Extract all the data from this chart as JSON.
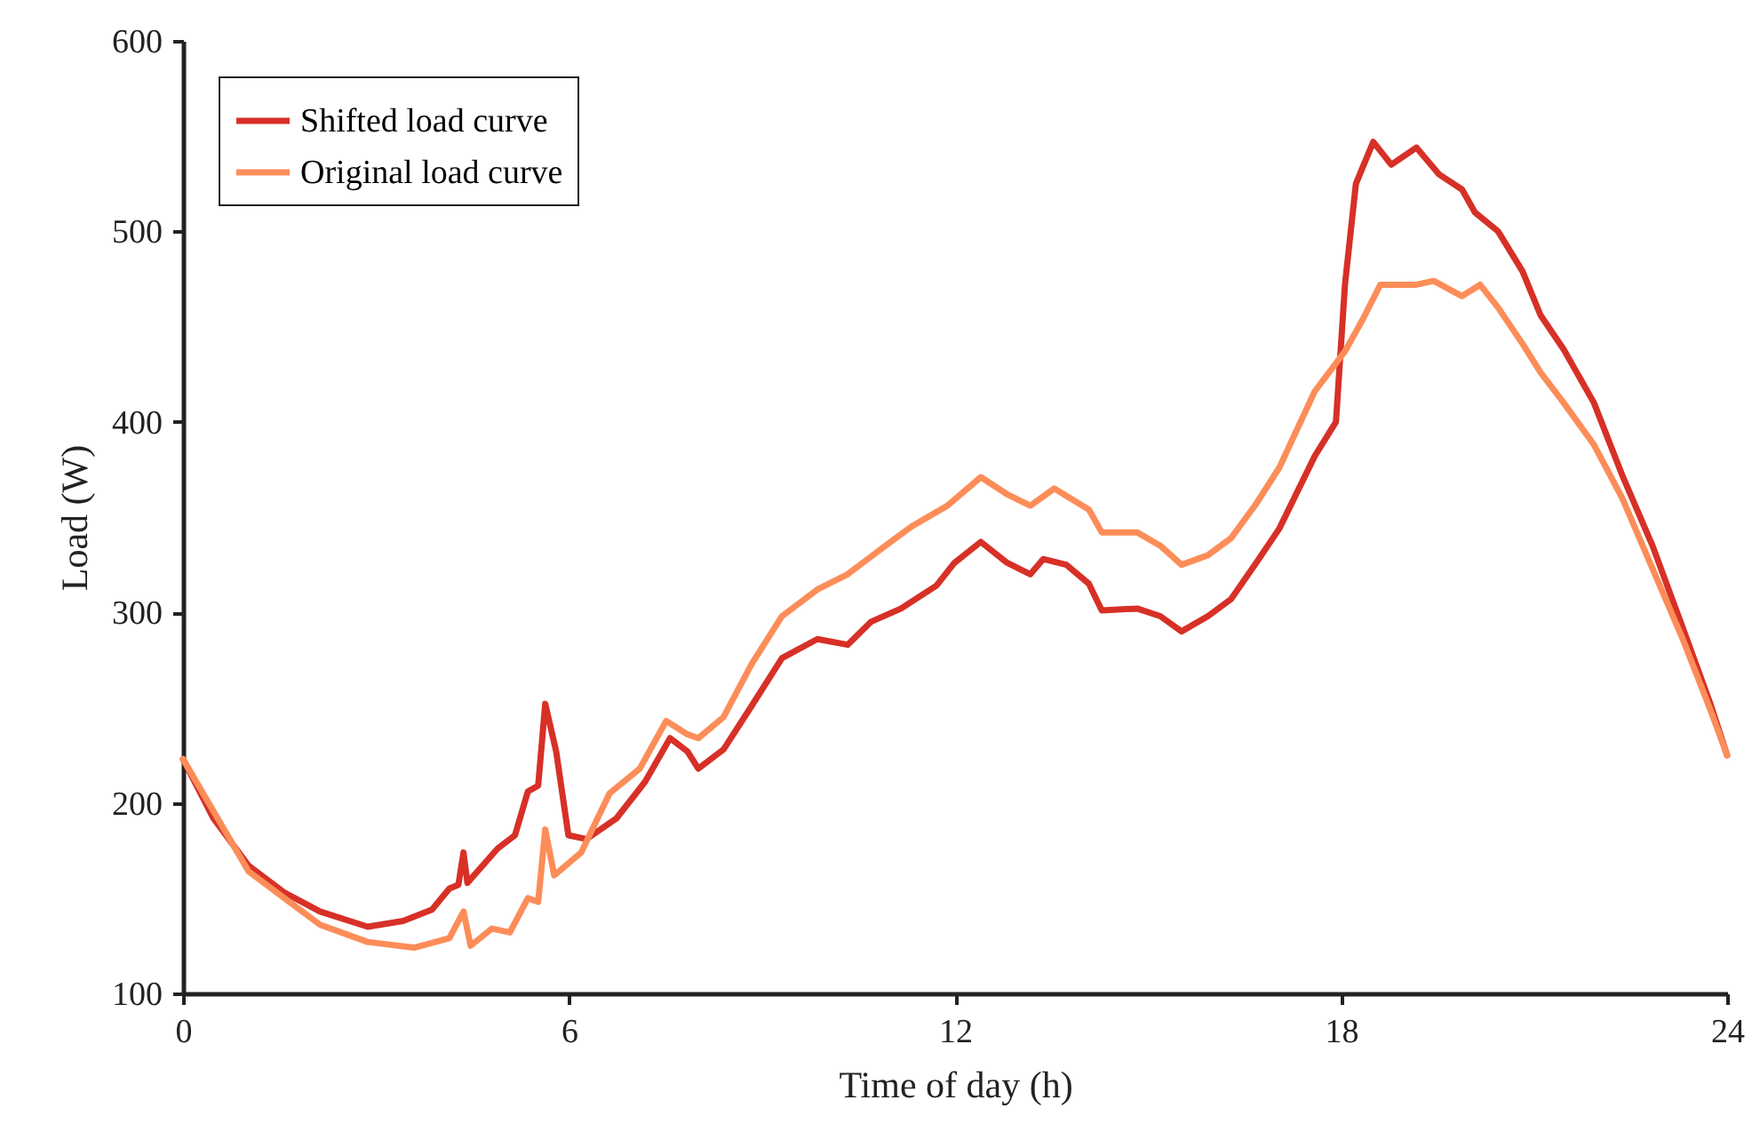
{
  "chart_data": {
    "type": "line",
    "xlabel": "Time of day (h)",
    "ylabel": "Load (W)",
    "xlim": [
      0,
      24
    ],
    "xticks": [
      0,
      6,
      12,
      18,
      24
    ],
    "ylim": [
      100,
      600
    ],
    "yticks": [
      100,
      200,
      300,
      400,
      500,
      600
    ],
    "legend": "top left",
    "line_style": "solid",
    "marker": "none",
    "series": [
      {
        "name": "Shifted load curve",
        "color": "#d73027",
        "x": [
          0,
          0.47,
          1.02,
          1.57,
          2.13,
          2.87,
          3.42,
          3.87,
          4.14,
          4.28,
          4.36,
          4.42,
          4.89,
          5.16,
          5.36,
          5.52,
          5.63,
          5.8,
          5.99,
          6.27,
          6.74,
          7.18,
          7.57,
          7.84,
          8.01,
          8.4,
          8.84,
          9.31,
          9.86,
          10.33,
          10.69,
          11.16,
          11.71,
          11.99,
          12.4,
          12.81,
          13.17,
          13.37,
          13.73,
          14.08,
          14.28,
          14.83,
          15.19,
          15.52,
          15.93,
          16.29,
          16.68,
          17.04,
          17.59,
          17.92,
          18.06,
          18.23,
          18.5,
          18.78,
          19.17,
          19.52,
          19.88,
          20.08,
          20.44,
          20.82,
          21.1,
          21.46,
          21.93,
          22.37,
          22.84,
          23.31,
          23.75,
          24
        ],
        "values": [
          223,
          192,
          167,
          153,
          143,
          135,
          138,
          144,
          155,
          157,
          174,
          158,
          176,
          183,
          206,
          209,
          252,
          227,
          183,
          181,
          192,
          211,
          234,
          227,
          218,
          228,
          251,
          276,
          286,
          283,
          295,
          302,
          314,
          326,
          337,
          326,
          320,
          328,
          325,
          315,
          301,
          302,
          298,
          290,
          298,
          307,
          326,
          344,
          382,
          400,
          472,
          525,
          547,
          535,
          544,
          530,
          522,
          510,
          500,
          479,
          456,
          438,
          410,
          372,
          335,
          292,
          251,
          225
        ]
      },
      {
        "name": "Original load curve",
        "color": "#fc8d59",
        "x": [
          0,
          1.02,
          2.13,
          2.87,
          3.59,
          4.14,
          4.36,
          4.47,
          4.8,
          5.08,
          5.36,
          5.52,
          5.63,
          5.77,
          6.19,
          6.63,
          7.1,
          7.51,
          7.84,
          8.01,
          8.4,
          8.84,
          9.31,
          9.86,
          10.33,
          10.88,
          11.32,
          11.88,
          12.4,
          12.81,
          13.17,
          13.54,
          14.08,
          14.28,
          14.83,
          15.19,
          15.52,
          15.93,
          16.29,
          16.68,
          17.04,
          17.59,
          18.06,
          18.34,
          18.61,
          19.17,
          19.44,
          19.88,
          20.16,
          20.44,
          20.82,
          21.1,
          21.46,
          21.93,
          22.37,
          22.84,
          23.31,
          23.75,
          24
        ],
        "values": [
          223,
          164,
          136,
          127,
          124,
          129,
          143,
          125,
          134,
          132,
          150,
          148,
          186,
          162,
          174,
          205,
          218,
          243,
          236,
          234,
          245,
          273,
          298,
          312,
          320,
          334,
          345,
          356,
          371,
          362,
          356,
          365,
          354,
          342,
          342,
          335,
          325,
          330,
          339,
          357,
          376,
          416,
          437,
          454,
          472,
          472,
          474,
          466,
          472,
          460,
          441,
          426,
          410,
          388,
          360,
          323,
          286,
          248,
          225
        ]
      }
    ]
  }
}
